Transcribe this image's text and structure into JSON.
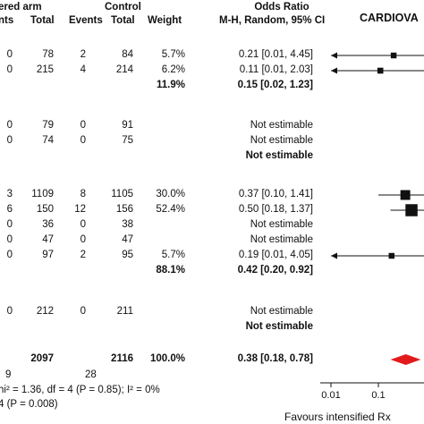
{
  "header": {
    "group_intervention": "ered arm",
    "group_control": "Control",
    "col_events_1": "nts",
    "col_total_1": "Total",
    "col_events_2": "Events",
    "col_total_2": "Total",
    "col_weight": "Weight",
    "col_or_title": "Odds Ratio",
    "col_or_method": "M-H, Random, 95% CI",
    "col_plot_title": "CARDIOVA"
  },
  "rows": [
    {
      "e1": "0",
      "t1": "78",
      "e2": "2",
      "t2": "84",
      "w": "5.7%",
      "ci": "0.21 [0.01, 4.45]"
    },
    {
      "e1": "0",
      "t1": "215",
      "e2": "4",
      "t2": "214",
      "w": "6.2%",
      "ci": "0.11 [0.01, 2.03]"
    },
    {
      "w": "11.9%",
      "ci": "0.15 [0.02, 1.23]",
      "subtotal": true
    },
    {
      "e1": "0",
      "t1": "79",
      "e2": "0",
      "t2": "91",
      "ci": "Not estimable"
    },
    {
      "e1": "0",
      "t1": "74",
      "e2": "0",
      "t2": "75",
      "ci": "Not estimable"
    },
    {
      "ci": "Not estimable",
      "subtotal": true
    },
    {
      "e1": "3",
      "t1": "1109",
      "e2": "8",
      "t2": "1105",
      "w": "30.0%",
      "ci": "0.37 [0.10, 1.41]"
    },
    {
      "e1": "6",
      "t1": "150",
      "e2": "12",
      "t2": "156",
      "w": "52.4%",
      "ci": "0.50 [0.18, 1.37]"
    },
    {
      "e1": "0",
      "t1": "36",
      "e2": "0",
      "t2": "38",
      "ci": "Not estimable"
    },
    {
      "e1": "0",
      "t1": "47",
      "e2": "0",
      "t2": "47",
      "ci": "Not estimable"
    },
    {
      "e1": "0",
      "t1": "97",
      "e2": "2",
      "t2": "95",
      "w": "5.7%",
      "ci": "0.19 [0.01, 4.05]"
    },
    {
      "w": "88.1%",
      "ci": "0.42 [0.20, 0.92]",
      "subtotal": true
    },
    {
      "e1": "0",
      "t1": "212",
      "e2": "0",
      "t2": "211",
      "ci": "Not estimable"
    },
    {
      "ci": "Not estimable",
      "subtotal": true
    },
    {
      "t1": "2097",
      "t2": "2116",
      "w": "100.0%",
      "ci": "0.38 [0.18, 0.78]",
      "subtotal": true
    }
  ],
  "footer": {
    "total_events_1": "9",
    "total_events_2": "28",
    "heterogeneity": "hi² = 1.36, df = 4 (P = 0.85); I² = 0%",
    "overall_effect": "4 (P = 0.008)",
    "favours_label": "Favours intensified Rx"
  },
  "colors": {
    "diamond": "#e31a1c",
    "ink": "#111111"
  },
  "chart_data": {
    "type": "scatter",
    "x_scale": "log",
    "xlim": [
      0.005,
      1.3
    ],
    "ticks": [
      "0.01",
      "0.1"
    ],
    "tick_values": [
      0.01,
      0.1
    ],
    "points": [
      {
        "or": 0.21,
        "lo": 0.01,
        "hi": 4.45,
        "weight": 5.7
      },
      {
        "or": 0.11,
        "lo": 0.01,
        "hi": 2.03,
        "weight": 6.2
      },
      {
        "or": 0.37,
        "lo": 0.1,
        "hi": 1.41,
        "weight": 30.0
      },
      {
        "or": 0.5,
        "lo": 0.18,
        "hi": 1.37,
        "weight": 52.4
      },
      {
        "or": 0.19,
        "lo": 0.01,
        "hi": 4.05,
        "weight": 5.7
      }
    ],
    "overall": {
      "or": 0.38,
      "lo": 0.18,
      "hi": 0.78
    }
  }
}
